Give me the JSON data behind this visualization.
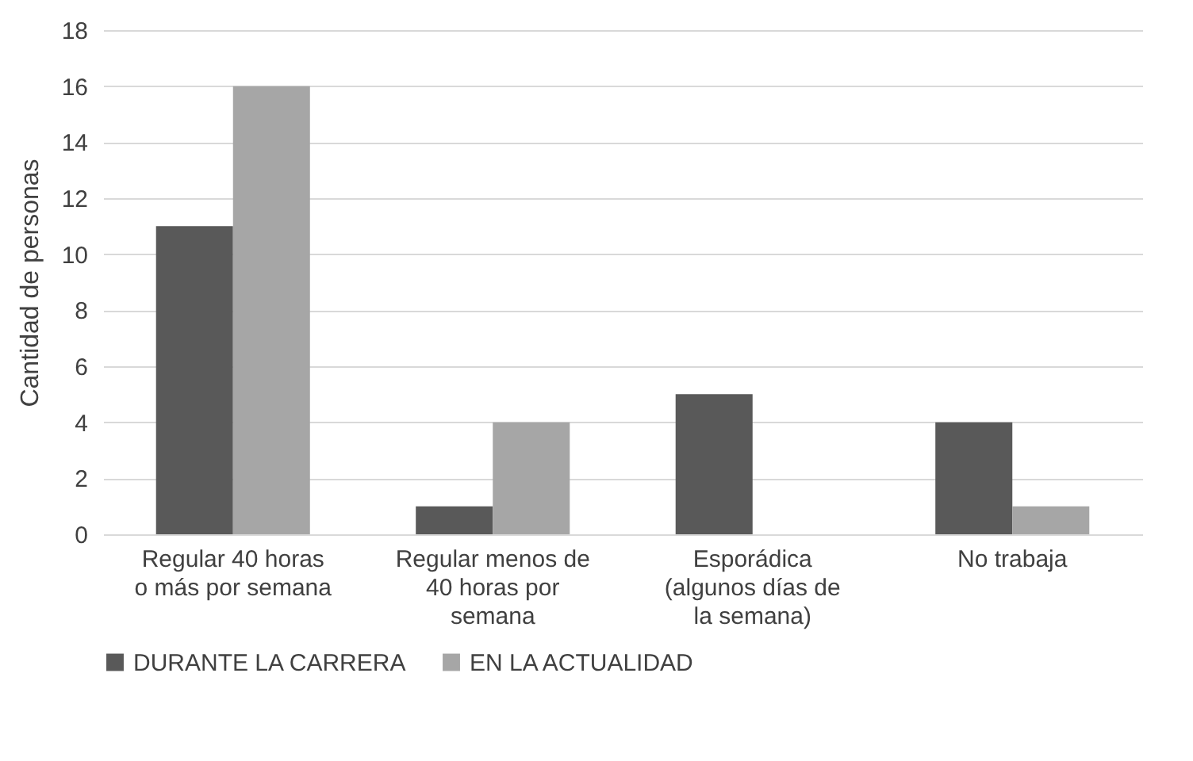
{
  "chart_data": {
    "type": "bar",
    "ylabel": "Cantidad de personas",
    "categories": [
      "Regular 40 horas o más por semana",
      "Regular menos de 40 horas por semana",
      "Esporádica (algunos días de la semana)",
      "No trabaja"
    ],
    "series": [
      {
        "name": "DURANTE LA CARRERA",
        "color": "#595959",
        "values": [
          11,
          1,
          5,
          4
        ]
      },
      {
        "name": "EN LA ACTUALIDAD",
        "color": "#a6a6a6",
        "values": [
          16,
          4,
          0,
          1
        ]
      }
    ],
    "ylim": [
      0,
      18
    ],
    "yticks": [
      0,
      2,
      4,
      6,
      8,
      10,
      12,
      14,
      16,
      18
    ],
    "grid": "y",
    "legend": "bottom"
  }
}
